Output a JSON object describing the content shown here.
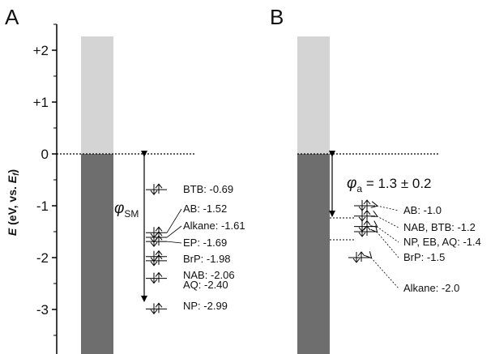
{
  "panels": {
    "a": {
      "letter": "A"
    },
    "b": {
      "letter": "B"
    }
  },
  "axis": {
    "title_main": "E",
    "title_mid": " (eV, vs. ",
    "title_sub_base": "E",
    "title_sub": "f",
    "title_end": ")",
    "ticks": [
      {
        "value": 2,
        "label": "+2"
      },
      {
        "value": 1,
        "label": "+1"
      },
      {
        "value": 0,
        "label": "0"
      },
      {
        "value": -1,
        "label": "-1"
      },
      {
        "value": -2,
        "label": "-2"
      },
      {
        "value": -3,
        "label": "-3"
      }
    ]
  },
  "panel_a": {
    "phi_symbol": "φ",
    "phi_subscript": "SM",
    "levels": [
      {
        "label": "BTB: -0.69",
        "energy": -0.69
      },
      {
        "label": "AB: -1.52",
        "energy": -1.52
      },
      {
        "label": "Alkane: -1.61",
        "energy": -1.61
      },
      {
        "label": "EP: -1.69",
        "energy": -1.69
      },
      {
        "label": "BrP: -1.98",
        "energy": -1.98
      },
      {
        "label": "NAB: -2.06",
        "energy": -2.06
      },
      {
        "label": "AQ: -2.40",
        "energy": -2.4
      },
      {
        "label": "NP: -2.99",
        "energy": -2.99
      }
    ]
  },
  "panel_b": {
    "phi_symbol": "φ",
    "phi_subscript": "a",
    "phi_value": " = 1.3 ± 0.2",
    "levels": [
      {
        "label": "AB: -1.0",
        "energy": -1.0
      },
      {
        "label": "NAB, BTB: -1.2",
        "energy": -1.2
      },
      {
        "label": "NP, EB, AQ: -1.4",
        "energy": -1.4
      },
      {
        "label": "BrP: -1.5",
        "energy": -1.5
      },
      {
        "label": "Alkane: -2.0",
        "energy": -2.0
      }
    ]
  },
  "colors": {
    "band_light": "#d4d4d4",
    "band_dark": "#6e6e6e",
    "line": "#000000"
  }
}
